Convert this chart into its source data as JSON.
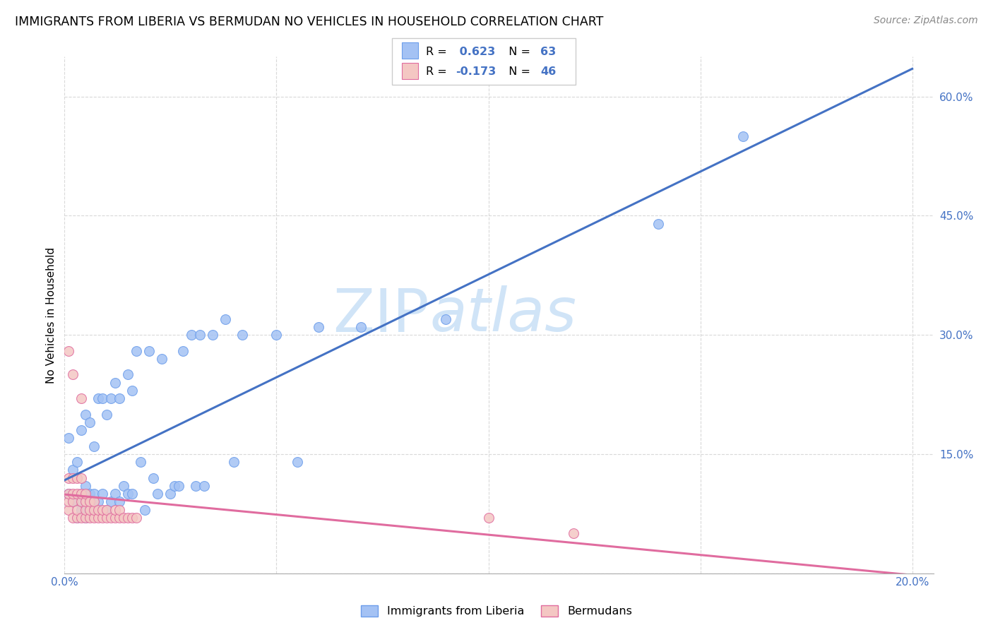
{
  "title": "IMMIGRANTS FROM LIBERIA VS BERMUDAN NO VEHICLES IN HOUSEHOLD CORRELATION CHART",
  "source": "Source: ZipAtlas.com",
  "ylabel": "No Vehicles in Household",
  "blue_R": 0.623,
  "blue_N": 63,
  "pink_R": -0.173,
  "pink_N": 46,
  "blue_color": "#a4c2f4",
  "pink_color": "#f4c7c3",
  "blue_edge_color": "#6d9eeb",
  "pink_edge_color": "#e06c9f",
  "blue_line_color": "#4472c4",
  "pink_line_color": "#e06c9f",
  "legend_blue_label": "Immigrants from Liberia",
  "legend_pink_label": "Bermudans",
  "watermark_text": "ZIPAtlas",
  "watermark_color": "#d0e4f7",
  "blue_x": [
    0.001,
    0.001,
    0.002,
    0.002,
    0.003,
    0.003,
    0.003,
    0.004,
    0.004,
    0.004,
    0.005,
    0.005,
    0.005,
    0.005,
    0.006,
    0.006,
    0.006,
    0.007,
    0.007,
    0.007,
    0.008,
    0.008,
    0.009,
    0.009,
    0.01,
    0.01,
    0.011,
    0.011,
    0.012,
    0.012,
    0.013,
    0.013,
    0.014,
    0.015,
    0.015,
    0.016,
    0.016,
    0.017,
    0.018,
    0.019,
    0.02,
    0.021,
    0.022,
    0.023,
    0.025,
    0.026,
    0.027,
    0.028,
    0.03,
    0.031,
    0.032,
    0.033,
    0.035,
    0.038,
    0.04,
    0.042,
    0.05,
    0.055,
    0.06,
    0.07,
    0.09,
    0.14,
    0.16
  ],
  "blue_y": [
    0.1,
    0.17,
    0.09,
    0.13,
    0.07,
    0.09,
    0.14,
    0.08,
    0.1,
    0.18,
    0.07,
    0.09,
    0.11,
    0.2,
    0.08,
    0.1,
    0.19,
    0.08,
    0.1,
    0.16,
    0.09,
    0.22,
    0.1,
    0.22,
    0.08,
    0.2,
    0.09,
    0.22,
    0.1,
    0.24,
    0.09,
    0.22,
    0.11,
    0.1,
    0.25,
    0.1,
    0.23,
    0.28,
    0.14,
    0.08,
    0.28,
    0.12,
    0.1,
    0.27,
    0.1,
    0.11,
    0.11,
    0.28,
    0.3,
    0.11,
    0.3,
    0.11,
    0.3,
    0.32,
    0.14,
    0.3,
    0.3,
    0.14,
    0.31,
    0.31,
    0.32,
    0.44,
    0.55
  ],
  "pink_x": [
    0.001,
    0.001,
    0.001,
    0.001,
    0.001,
    0.002,
    0.002,
    0.002,
    0.002,
    0.002,
    0.003,
    0.003,
    0.003,
    0.003,
    0.004,
    0.004,
    0.004,
    0.004,
    0.004,
    0.005,
    0.005,
    0.005,
    0.005,
    0.006,
    0.006,
    0.006,
    0.007,
    0.007,
    0.007,
    0.008,
    0.008,
    0.009,
    0.009,
    0.01,
    0.01,
    0.011,
    0.012,
    0.012,
    0.013,
    0.013,
    0.014,
    0.015,
    0.016,
    0.017,
    0.1,
    0.12
  ],
  "pink_y": [
    0.08,
    0.09,
    0.1,
    0.12,
    0.28,
    0.07,
    0.09,
    0.1,
    0.12,
    0.25,
    0.07,
    0.08,
    0.1,
    0.12,
    0.07,
    0.09,
    0.1,
    0.12,
    0.22,
    0.07,
    0.08,
    0.09,
    0.1,
    0.07,
    0.08,
    0.09,
    0.07,
    0.08,
    0.09,
    0.07,
    0.08,
    0.07,
    0.08,
    0.07,
    0.08,
    0.07,
    0.07,
    0.08,
    0.07,
    0.08,
    0.07,
    0.07,
    0.07,
    0.07,
    0.07,
    0.05
  ]
}
